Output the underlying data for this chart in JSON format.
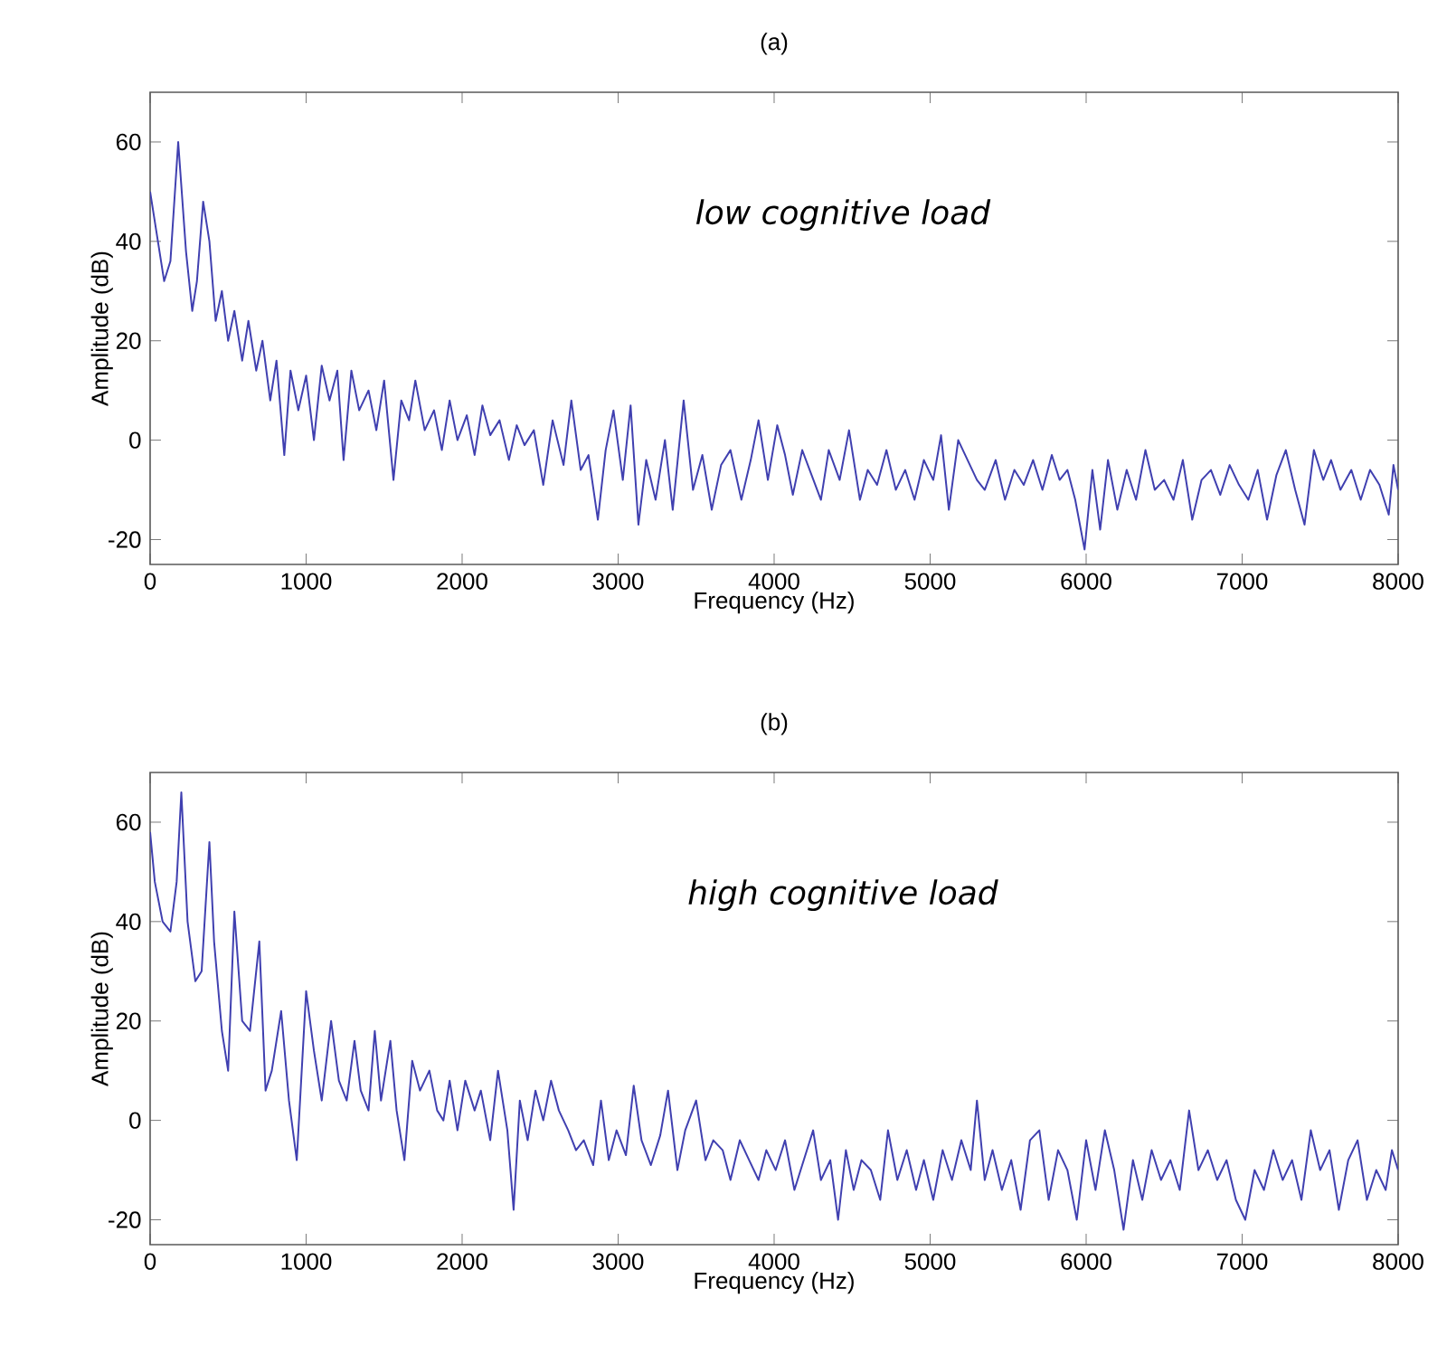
{
  "chart_data": [
    {
      "type": "line",
      "title": "(a)",
      "xlabel": "Frequency (Hz)",
      "ylabel": "Amplitude (dB)",
      "annotations": [
        "low cognitive load"
      ],
      "xlim": [
        0,
        8000
      ],
      "ylim": [
        -25,
        70
      ],
      "xticks": [
        0,
        1000,
        2000,
        3000,
        4000,
        5000,
        6000,
        7000,
        8000
      ],
      "yticks": [
        -20,
        0,
        20,
        40,
        60
      ],
      "grid": false,
      "series": [
        {
          "color": "#4040b0",
          "x": [
            0,
            40,
            90,
            130,
            180,
            230,
            270,
            300,
            340,
            380,
            420,
            460,
            500,
            540,
            590,
            630,
            680,
            720,
            770,
            810,
            860,
            900,
            950,
            1000,
            1050,
            1100,
            1150,
            1200,
            1240,
            1290,
            1340,
            1400,
            1450,
            1500,
            1560,
            1610,
            1660,
            1700,
            1760,
            1820,
            1870,
            1920,
            1970,
            2030,
            2080,
            2130,
            2180,
            2240,
            2300,
            2350,
            2400,
            2460,
            2520,
            2580,
            2650,
            2700,
            2760,
            2810,
            2870,
            2920,
            2970,
            3030,
            3080,
            3130,
            3180,
            3240,
            3300,
            3350,
            3420,
            3480,
            3540,
            3600,
            3660,
            3720,
            3790,
            3850,
            3900,
            3960,
            4020,
            4070,
            4120,
            4180,
            4240,
            4300,
            4350,
            4420,
            4480,
            4550,
            4600,
            4660,
            4720,
            4780,
            4840,
            4900,
            4960,
            5020,
            5070,
            5120,
            5180,
            5240,
            5300,
            5350,
            5420,
            5480,
            5540,
            5600,
            5660,
            5720,
            5780,
            5830,
            5880,
            5930,
            5990,
            6040,
            6090,
            6140,
            6200,
            6260,
            6320,
            6380,
            6440,
            6500,
            6560,
            6620,
            6680,
            6740,
            6800,
            6860,
            6920,
            6980,
            7040,
            7100,
            7160,
            7220,
            7280,
            7340,
            7400,
            7460,
            7520,
            7570,
            7630,
            7700,
            7760,
            7820,
            7880,
            7940,
            7970,
            8000
          ],
          "values": [
            50,
            42,
            32,
            36,
            60,
            38,
            26,
            32,
            48,
            40,
            24,
            30,
            20,
            26,
            16,
            24,
            14,
            20,
            8,
            16,
            -3,
            14,
            6,
            13,
            0,
            15,
            8,
            14,
            -4,
            14,
            6,
            10,
            2,
            12,
            -8,
            8,
            4,
            12,
            2,
            6,
            -2,
            8,
            0,
            5,
            -3,
            7,
            1,
            4,
            -4,
            3,
            -1,
            2,
            -9,
            4,
            -5,
            8,
            -6,
            -3,
            -16,
            -2,
            6,
            -8,
            7,
            -17,
            -4,
            -12,
            0,
            -14,
            8,
            -10,
            -3,
            -14,
            -5,
            -2,
            -12,
            -4,
            4,
            -8,
            3,
            -3,
            -11,
            -2,
            -7,
            -12,
            -2,
            -8,
            2,
            -12,
            -6,
            -9,
            -2,
            -10,
            -6,
            -12,
            -4,
            -8,
            1,
            -14,
            0,
            -4,
            -8,
            -10,
            -4,
            -12,
            -6,
            -9,
            -4,
            -10,
            -3,
            -8,
            -6,
            -12,
            -22,
            -6,
            -18,
            -4,
            -14,
            -6,
            -12,
            -2,
            -10,
            -8,
            -12,
            -4,
            -16,
            -8,
            -6,
            -11,
            -5,
            -9,
            -12,
            -6,
            -16,
            -7,
            -2,
            -10,
            -17,
            -2,
            -8,
            -4,
            -10,
            -6,
            -12,
            -6,
            -9,
            -15,
            -5,
            -10
          ]
        }
      ]
    },
    {
      "type": "line",
      "title": "(b)",
      "xlabel": "Frequency (Hz)",
      "ylabel": "Amplitude (dB)",
      "annotations": [
        "high cognitive load"
      ],
      "xlim": [
        0,
        8000
      ],
      "ylim": [
        -25,
        70
      ],
      "xticks": [
        0,
        1000,
        2000,
        3000,
        4000,
        5000,
        6000,
        7000,
        8000
      ],
      "yticks": [
        -20,
        0,
        20,
        40,
        60
      ],
      "grid": false,
      "series": [
        {
          "color": "#4040b0",
          "x": [
            0,
            30,
            80,
            130,
            170,
            200,
            240,
            290,
            330,
            380,
            410,
            460,
            500,
            540,
            590,
            640,
            700,
            740,
            780,
            840,
            890,
            940,
            1000,
            1050,
            1100,
            1160,
            1210,
            1260,
            1310,
            1350,
            1400,
            1440,
            1480,
            1540,
            1580,
            1630,
            1680,
            1730,
            1790,
            1840,
            1880,
            1920,
            1970,
            2020,
            2080,
            2120,
            2180,
            2230,
            2290,
            2330,
            2370,
            2420,
            2470,
            2520,
            2570,
            2620,
            2680,
            2730,
            2780,
            2840,
            2890,
            2940,
            2990,
            3050,
            3100,
            3150,
            3210,
            3270,
            3320,
            3380,
            3430,
            3500,
            3560,
            3610,
            3670,
            3720,
            3780,
            3840,
            3900,
            3950,
            4010,
            4070,
            4130,
            4190,
            4250,
            4300,
            4360,
            4410,
            4460,
            4510,
            4560,
            4620,
            4680,
            4730,
            4790,
            4850,
            4910,
            4960,
            5020,
            5080,
            5140,
            5200,
            5260,
            5300,
            5350,
            5400,
            5460,
            5520,
            5580,
            5640,
            5700,
            5760,
            5820,
            5880,
            5940,
            6000,
            6060,
            6120,
            6180,
            6240,
            6300,
            6360,
            6420,
            6480,
            6540,
            6600,
            6660,
            6720,
            6780,
            6840,
            6900,
            6960,
            7020,
            7080,
            7140,
            7200,
            7260,
            7320,
            7380,
            7440,
            7500,
            7560,
            7620,
            7680,
            7740,
            7800,
            7860,
            7920,
            7960,
            8000
          ],
          "values": [
            58,
            48,
            40,
            38,
            48,
            66,
            40,
            28,
            30,
            56,
            36,
            18,
            10,
            42,
            20,
            18,
            36,
            6,
            10,
            22,
            4,
            -8,
            26,
            14,
            4,
            20,
            8,
            4,
            16,
            6,
            2,
            18,
            4,
            16,
            2,
            -8,
            12,
            6,
            10,
            2,
            0,
            8,
            -2,
            8,
            2,
            6,
            -4,
            10,
            -2,
            -18,
            4,
            -4,
            6,
            0,
            8,
            2,
            -2,
            -6,
            -4,
            -9,
            4,
            -8,
            -2,
            -7,
            7,
            -4,
            -9,
            -3,
            6,
            -10,
            -2,
            4,
            -8,
            -4,
            -6,
            -12,
            -4,
            -8,
            -12,
            -6,
            -10,
            -4,
            -14,
            -8,
            -2,
            -12,
            -8,
            -20,
            -6,
            -14,
            -8,
            -10,
            -16,
            -2,
            -12,
            -6,
            -14,
            -8,
            -16,
            -6,
            -12,
            -4,
            -10,
            4,
            -12,
            -6,
            -14,
            -8,
            -18,
            -4,
            -2,
            -16,
            -6,
            -10,
            -20,
            -4,
            -14,
            -2,
            -10,
            -22,
            -8,
            -16,
            -6,
            -12,
            -8,
            -14,
            2,
            -10,
            -6,
            -12,
            -8,
            -16,
            -20,
            -10,
            -14,
            -6,
            -12,
            -8,
            -16,
            -2,
            -10,
            -6,
            -18,
            -8,
            -4,
            -16,
            -10,
            -14,
            -6,
            -10
          ]
        }
      ]
    }
  ]
}
